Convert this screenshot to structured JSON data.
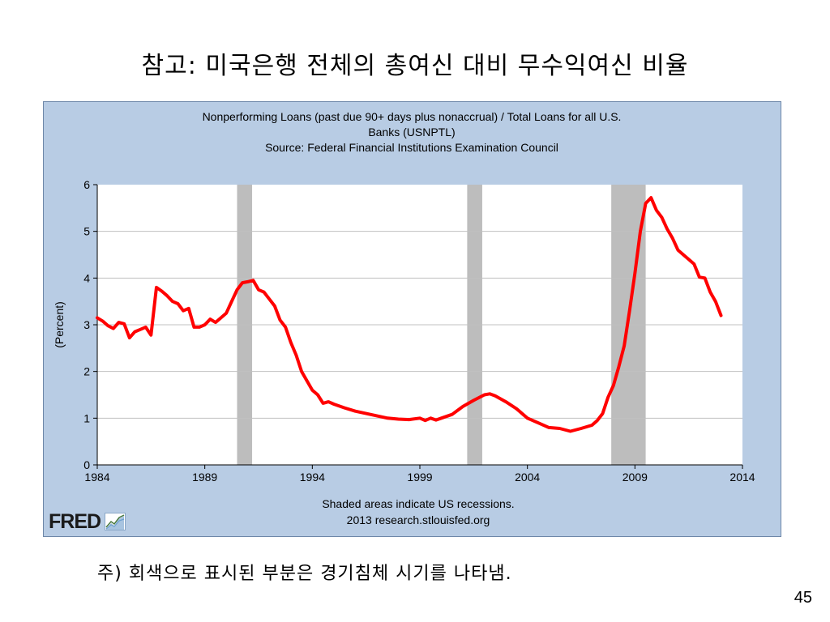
{
  "slide": {
    "title": "참고:  미국은행 전체의 총여신 대비 무수익여신 비율",
    "footnote": "주)  회색으로 표시된 부분은 경기침체 시기를 나타냄.",
    "page_number": "45"
  },
  "logo": {
    "text": "FRED",
    "icon": "fred-chart-icon"
  },
  "colors": {
    "panel_bg": "#b8cce4",
    "plot_bg": "#ffffff",
    "series": "#ff0000",
    "recession": "#bdbdbd",
    "grid": "#c0c0c0"
  },
  "chart_data": {
    "type": "line",
    "title_lines": [
      "Nonperforming Loans (past due 90+ days plus nonaccrual) / Total Loans for all U.S.",
      "Banks (USNPTL)",
      "Source: Federal Financial Institutions Examination Council"
    ],
    "ylabel": "(Percent)",
    "xlabel": "",
    "notes": [
      "Shaded areas indicate US recessions.",
      "2013 research.stlouisfed.org"
    ],
    "xlim": [
      1984,
      2014
    ],
    "ylim": [
      0,
      6
    ],
    "x_ticks": [
      1984,
      1989,
      1994,
      1999,
      2004,
      2009,
      2014
    ],
    "y_ticks": [
      0,
      1,
      2,
      3,
      4,
      5,
      6
    ],
    "grid": true,
    "recessions": [
      [
        1990.5,
        1991.2
      ],
      [
        2001.2,
        2001.9
      ],
      [
        2007.9,
        2009.5
      ]
    ],
    "series": [
      {
        "x": [
          1984.0,
          1984.25,
          1984.5,
          1984.75,
          1985.0,
          1985.25,
          1985.5,
          1985.75,
          1986.0,
          1986.25,
          1986.5,
          1986.75,
          1987.0,
          1987.25,
          1987.5,
          1987.75,
          1988.0,
          1988.25,
          1988.5,
          1988.75,
          1989.0,
          1989.25,
          1989.5,
          1989.75,
          1990.0,
          1990.25,
          1990.5,
          1990.75,
          1991.0,
          1991.25,
          1991.5,
          1991.75,
          1992.0,
          1992.25,
          1992.5,
          1992.75,
          1993.0,
          1993.25,
          1993.5,
          1993.75,
          1994.0,
          1994.25,
          1994.5,
          1994.75,
          1995.0,
          1995.5,
          1996.0,
          1996.5,
          1997.0,
          1997.5,
          1998.0,
          1998.5,
          1999.0,
          1999.25,
          1999.5,
          1999.75,
          2000.0,
          2000.5,
          2001.0,
          2001.5,
          2002.0,
          2002.25,
          2002.5,
          2003.0,
          2003.5,
          2004.0,
          2004.5,
          2005.0,
          2005.5,
          2006.0,
          2006.5,
          2007.0,
          2007.25,
          2007.5,
          2007.75,
          2008.0,
          2008.25,
          2008.5,
          2008.75,
          2009.0,
          2009.25,
          2009.5,
          2009.75,
          2010.0,
          2010.25,
          2010.5,
          2010.75,
          2011.0,
          2011.25,
          2011.5,
          2011.75,
          2012.0,
          2012.25,
          2012.5,
          2012.75,
          2013.0
        ],
        "y": [
          3.15,
          3.08,
          2.98,
          2.92,
          3.05,
          3.02,
          2.72,
          2.85,
          2.9,
          2.95,
          2.78,
          3.8,
          3.72,
          3.62,
          3.5,
          3.45,
          3.3,
          3.35,
          2.95,
          2.95,
          3.0,
          3.12,
          3.05,
          3.15,
          3.25,
          3.5,
          3.75,
          3.9,
          3.92,
          3.95,
          3.75,
          3.7,
          3.55,
          3.4,
          3.1,
          2.95,
          2.62,
          2.35,
          2.0,
          1.8,
          1.6,
          1.5,
          1.32,
          1.35,
          1.3,
          1.22,
          1.15,
          1.1,
          1.05,
          1.0,
          0.98,
          0.97,
          1.0,
          0.95,
          1.0,
          0.96,
          1.0,
          1.08,
          1.25,
          1.38,
          1.5,
          1.52,
          1.48,
          1.35,
          1.2,
          1.0,
          0.9,
          0.8,
          0.78,
          0.72,
          0.78,
          0.85,
          0.95,
          1.1,
          1.45,
          1.7,
          2.1,
          2.55,
          3.3,
          4.1,
          5.0,
          5.6,
          5.72,
          5.45,
          5.3,
          5.05,
          4.85,
          4.6,
          4.5,
          4.4,
          4.3,
          4.02,
          4.0,
          3.7,
          3.5,
          3.2
        ]
      }
    ]
  }
}
